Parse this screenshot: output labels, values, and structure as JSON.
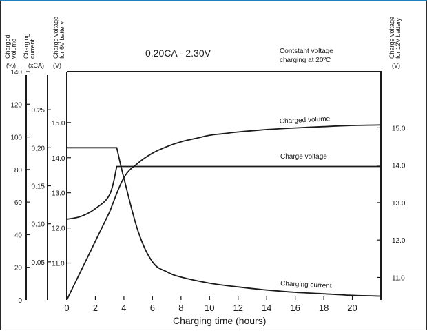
{
  "chart_data": {
    "type": "line",
    "title": "0.20CA - 2.30V",
    "note_lines": [
      "Contstant voltage",
      "charging at 20ºC"
    ],
    "xlabel": "Charging time (hours)",
    "xlim": [
      0,
      22
    ],
    "x_ticks": [
      "0",
      "2",
      "4",
      "6",
      "8",
      "10",
      "12",
      "14",
      "16",
      "18",
      "20"
    ],
    "axes": {
      "charged_volume": {
        "label_lines": [
          "Charged",
          "volume"
        ],
        "unit": "(%)",
        "range": [
          0,
          140
        ],
        "ticks": [
          "0",
          "20",
          "40",
          "60",
          "80",
          "100",
          "120",
          "140"
        ]
      },
      "charging_current": {
        "label_lines": [
          "Charging",
          "current"
        ],
        "unit": "(xCA)",
        "range": [
          0,
          0.3
        ],
        "ticks": [
          "0.05",
          "0.10",
          "0.15",
          "0.20",
          "0.25"
        ]
      },
      "charge_voltage_6v": {
        "label_lines": [
          "Charge voltage",
          "for 6V battery"
        ],
        "unit": "(V)",
        "range": [
          9.95,
          16.45
        ],
        "ticks": [
          "11.0",
          "12.0",
          "13.0",
          "14.0",
          "15.0"
        ]
      },
      "charge_voltage_12v": {
        "label_lines": [
          "Charge voltage",
          "for 12V battery"
        ],
        "unit": "(V)",
        "range": [
          10.4,
          16.5
        ],
        "ticks": [
          "11.0",
          "12.0",
          "13.0",
          "14.0",
          "15.0"
        ]
      }
    },
    "series": [
      {
        "name": "Charged volume",
        "axis": "charged_volume",
        "x": [
          0,
          1,
          2,
          3,
          4,
          5,
          6,
          7,
          8,
          9,
          10,
          11,
          12,
          14,
          16,
          18,
          20,
          22
        ],
        "y": [
          0,
          17,
          35,
          54,
          75,
          84,
          90,
          94,
          97,
          99,
          101,
          102,
          103,
          104.5,
          105.5,
          106.3,
          107,
          107.3
        ]
      },
      {
        "name": "Charge voltage",
        "axis": "charge_voltage_6v",
        "x": [
          0,
          1,
          2,
          3,
          3.5,
          22
        ],
        "y": [
          12.25,
          12.33,
          12.55,
          12.95,
          13.75,
          13.75
        ]
      },
      {
        "name": "Charging current",
        "axis": "charging_current",
        "x": [
          0,
          3.5,
          4,
          5,
          6,
          7,
          8,
          10,
          12,
          14,
          16,
          18,
          20,
          22
        ],
        "y": [
          0.2,
          0.2,
          0.16,
          0.09,
          0.05,
          0.037,
          0.03,
          0.022,
          0.017,
          0.013,
          0.01,
          0.008,
          0.006,
          0.005
        ]
      }
    ],
    "grid": false,
    "legend": "none"
  }
}
